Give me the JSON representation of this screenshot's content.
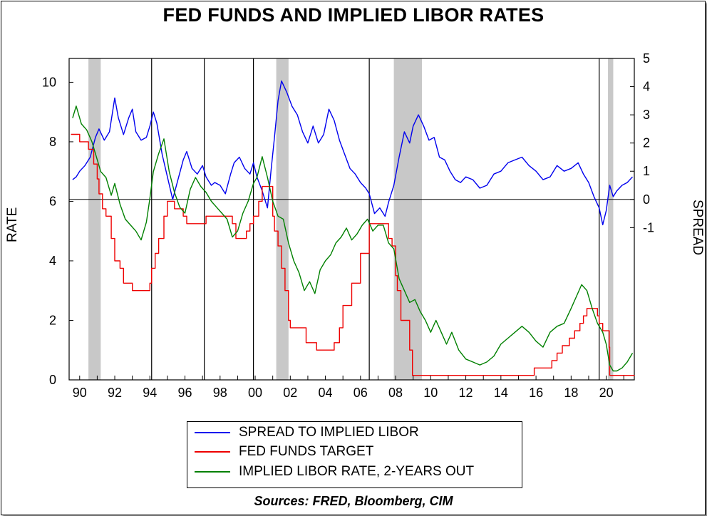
{
  "title": "FED FUNDS AND IMPLIED LIBOR RATES",
  "source": "Sources:  FRED, Bloomberg, CIM",
  "colors": {
    "spread": "#0000ee",
    "fed_funds": "#ee0000",
    "libor": "#008000",
    "recession": "#c8c8c8"
  },
  "chart_data": {
    "type": "line",
    "title": "FED FUNDS AND IMPLIED LIBOR RATES",
    "ylabel": "RATE",
    "y2label": "SPREAD",
    "xlim": [
      1989.4,
      2021.6
    ],
    "ylim": [
      0,
      10.8
    ],
    "y2lim": [
      -6.4,
      5
    ],
    "x_ticks": [
      "90",
      "92",
      "94",
      "96",
      "98",
      "00",
      "02",
      "04",
      "06",
      "08",
      "10",
      "12",
      "14",
      "16",
      "18",
      "20"
    ],
    "y_ticks": [
      "0",
      "2",
      "4",
      "6",
      "8",
      "10"
    ],
    "y2_ticks": [
      "-1",
      "0",
      "1",
      "2",
      "3",
      "4",
      "5"
    ],
    "recessions": [
      [
        1990.5,
        1991.2
      ],
      [
        2001.2,
        2001.9
      ],
      [
        2007.9,
        2009.5
      ],
      [
        2020.1,
        2020.4
      ]
    ],
    "vertical_lines": [
      1994.1,
      1997.1,
      1999.9,
      2006.5,
      2019.6
    ],
    "zero_line": 0,
    "series": [
      {
        "name": "SPREAD TO IMPLIED LIBOR",
        "axis": "right",
        "x": [
          1989.6,
          1989.8,
          1990.0,
          1990.3,
          1990.6,
          1990.9,
          1991.1,
          1991.4,
          1991.7,
          1992.0,
          1992.2,
          1992.5,
          1992.8,
          1993.0,
          1993.2,
          1993.5,
          1993.8,
          1994.0,
          1994.2,
          1994.4,
          1994.7,
          1995.0,
          1995.3,
          1995.6,
          1995.9,
          1996.1,
          1996.4,
          1996.7,
          1997.0,
          1997.2,
          1997.5,
          1997.7,
          1998.0,
          1998.3,
          1998.6,
          1998.8,
          1999.1,
          1999.4,
          1999.7,
          1999.9,
          2000.1,
          2000.4,
          2000.7,
          2000.9,
          2001.1,
          2001.3,
          2001.5,
          2001.8,
          2002.1,
          2002.4,
          2002.7,
          2003.0,
          2003.3,
          2003.6,
          2003.9,
          2004.2,
          2004.5,
          2004.8,
          2005.1,
          2005.4,
          2005.7,
          2006.0,
          2006.3,
          2006.5,
          2006.8,
          2007.1,
          2007.4,
          2007.6,
          2007.9,
          2008.2,
          2008.5,
          2008.8,
          2009.0,
          2009.3,
          2009.6,
          2009.9,
          2010.2,
          2010.5,
          2010.8,
          2011.1,
          2011.4,
          2011.7,
          2012.0,
          2012.4,
          2012.8,
          2013.2,
          2013.6,
          2014.0,
          2014.4,
          2014.8,
          2015.2,
          2015.6,
          2016.0,
          2016.4,
          2016.8,
          2017.2,
          2017.6,
          2018.0,
          2018.4,
          2018.7,
          2019.0,
          2019.3,
          2019.6,
          2019.8,
          2020.0,
          2020.2,
          2020.4,
          2020.6,
          2020.9,
          2021.2,
          2021.5
        ],
        "values": [
          0.7,
          0.8,
          1.0,
          1.2,
          1.5,
          2.2,
          2.5,
          2.1,
          2.4,
          3.6,
          2.9,
          2.3,
          2.9,
          3.2,
          2.4,
          2.1,
          2.2,
          2.6,
          3.1,
          2.7,
          1.6,
          0.8,
          0.0,
          0.7,
          1.4,
          1.7,
          1.1,
          0.9,
          1.2,
          0.8,
          0.5,
          0.6,
          0.5,
          0.2,
          0.9,
          1.3,
          1.5,
          1.1,
          0.9,
          1.3,
          0.8,
          0.3,
          -0.3,
          1.0,
          2.2,
          3.5,
          4.2,
          3.8,
          3.3,
          3.0,
          2.4,
          2.0,
          2.6,
          2.0,
          2.3,
          3.2,
          2.8,
          2.1,
          1.6,
          1.1,
          0.9,
          0.6,
          0.4,
          0.2,
          -0.5,
          -0.3,
          -0.6,
          -0.1,
          0.5,
          1.5,
          2.4,
          2.0,
          2.6,
          3.0,
          2.6,
          2.1,
          2.2,
          1.5,
          1.4,
          1.0,
          0.7,
          0.6,
          0.8,
          0.7,
          0.4,
          0.5,
          0.9,
          1.0,
          1.3,
          1.4,
          1.5,
          1.2,
          1.0,
          0.7,
          0.8,
          1.2,
          1.0,
          1.1,
          1.3,
          0.9,
          0.6,
          0.1,
          -0.3,
          -0.9,
          -0.4,
          0.5,
          0.1,
          0.3,
          0.5,
          0.6,
          0.8
        ]
      },
      {
        "name": "FED FUNDS TARGET",
        "axis": "left",
        "step": true,
        "x": [
          1989.5,
          1990.0,
          1990.5,
          1990.8,
          1991.0,
          1991.1,
          1991.3,
          1991.5,
          1991.8,
          1992.0,
          1992.3,
          1992.5,
          1993.0,
          1993.5,
          1994.0,
          1994.1,
          1994.3,
          1994.5,
          1994.8,
          1995.0,
          1995.4,
          1995.9,
          1996.1,
          1997.2,
          1998.7,
          1998.9,
          1999.5,
          1999.7,
          1999.9,
          2000.2,
          2000.4,
          2001.0,
          2001.1,
          2001.3,
          2001.5,
          2001.7,
          2001.9,
          2002.0,
          2002.9,
          2003.5,
          2004.5,
          2004.8,
          2005.0,
          2005.5,
          2006.0,
          2006.5,
          2007.6,
          2007.8,
          2008.0,
          2008.1,
          2008.3,
          2008.8,
          2008.96,
          2015.9,
          2016.9,
          2017.2,
          2017.5,
          2017.9,
          2018.2,
          2018.5,
          2018.7,
          2018.9,
          2019.5,
          2019.6,
          2019.8,
          2020.17,
          2020.2,
          2021.6
        ],
        "values": [
          8.25,
          8.0,
          7.75,
          7.25,
          6.75,
          6.25,
          5.75,
          5.5,
          4.75,
          4.0,
          3.75,
          3.25,
          3.0,
          3.0,
          3.25,
          3.75,
          4.25,
          4.75,
          5.5,
          6.0,
          5.75,
          5.5,
          5.25,
          5.5,
          5.25,
          4.75,
          5.0,
          5.25,
          5.5,
          6.0,
          6.5,
          5.5,
          5.0,
          4.5,
          3.75,
          3.0,
          2.0,
          1.75,
          1.25,
          1.0,
          1.25,
          1.75,
          2.5,
          3.25,
          4.25,
          5.25,
          4.75,
          4.5,
          3.5,
          3.0,
          2.0,
          1.0,
          0.15,
          0.4,
          0.65,
          0.9,
          1.15,
          1.4,
          1.65,
          1.9,
          2.15,
          2.4,
          2.15,
          1.9,
          1.65,
          1.1,
          0.15,
          0.15
        ]
      },
      {
        "name": "IMPLIED LIBOR RATE, 2-YEARS OUT",
        "axis": "left",
        "x": [
          1989.6,
          1989.8,
          1990.1,
          1990.4,
          1990.7,
          1991.0,
          1991.2,
          1991.5,
          1991.8,
          1992.0,
          1992.3,
          1992.6,
          1992.9,
          1993.2,
          1993.5,
          1993.8,
          1994.0,
          1994.2,
          1994.5,
          1994.8,
          1995.1,
          1995.4,
          1995.7,
          1996.0,
          1996.3,
          1996.6,
          1996.9,
          1997.2,
          1997.5,
          1997.8,
          1998.1,
          1998.4,
          1998.7,
          1999.0,
          1999.3,
          1999.6,
          1999.9,
          2000.1,
          2000.4,
          2000.7,
          2001.0,
          2001.3,
          2001.6,
          2001.9,
          2002.2,
          2002.5,
          2002.8,
          2003.1,
          2003.4,
          2003.7,
          2004.0,
          2004.3,
          2004.6,
          2004.9,
          2005.2,
          2005.5,
          2005.8,
          2006.1,
          2006.4,
          2006.7,
          2007.0,
          2007.3,
          2007.6,
          2007.9,
          2008.2,
          2008.5,
          2008.8,
          2009.1,
          2009.4,
          2009.7,
          2010.0,
          2010.3,
          2010.6,
          2010.9,
          2011.2,
          2011.6,
          2012.0,
          2012.4,
          2012.8,
          2013.2,
          2013.6,
          2014.0,
          2014.4,
          2014.8,
          2015.2,
          2015.6,
          2016.0,
          2016.4,
          2016.8,
          2017.2,
          2017.6,
          2018.0,
          2018.3,
          2018.6,
          2018.9,
          2019.2,
          2019.5,
          2019.8,
          2020.0,
          2020.2,
          2020.4,
          2020.6,
          2020.9,
          2021.2,
          2021.5
        ],
        "values": [
          8.8,
          9.2,
          8.6,
          8.4,
          8.0,
          7.4,
          7.0,
          6.8,
          6.2,
          6.6,
          5.9,
          5.4,
          5.2,
          5.0,
          4.7,
          5.3,
          6.1,
          7.0,
          7.6,
          8.1,
          7.0,
          6.3,
          5.8,
          5.6,
          6.4,
          6.8,
          6.5,
          6.3,
          6.0,
          5.8,
          5.6,
          5.4,
          4.8,
          5.0,
          5.6,
          6.0,
          6.6,
          6.8,
          7.5,
          6.8,
          6.0,
          5.5,
          5.4,
          4.6,
          4.0,
          3.6,
          3.0,
          3.3,
          2.9,
          3.7,
          4.0,
          4.2,
          4.6,
          4.8,
          5.1,
          4.7,
          4.9,
          5.2,
          5.4,
          5.0,
          5.2,
          5.2,
          4.6,
          4.4,
          3.4,
          3.0,
          2.6,
          2.7,
          2.3,
          2.0,
          1.6,
          2.0,
          1.6,
          1.2,
          1.6,
          1.0,
          0.7,
          0.6,
          0.5,
          0.6,
          0.8,
          1.2,
          1.4,
          1.6,
          1.8,
          1.6,
          1.3,
          1.1,
          1.6,
          1.8,
          1.9,
          2.4,
          2.8,
          3.2,
          3.0,
          2.4,
          1.9,
          1.6,
          1.2,
          0.5,
          0.3,
          0.3,
          0.4,
          0.6,
          0.9
        ]
      }
    ]
  }
}
